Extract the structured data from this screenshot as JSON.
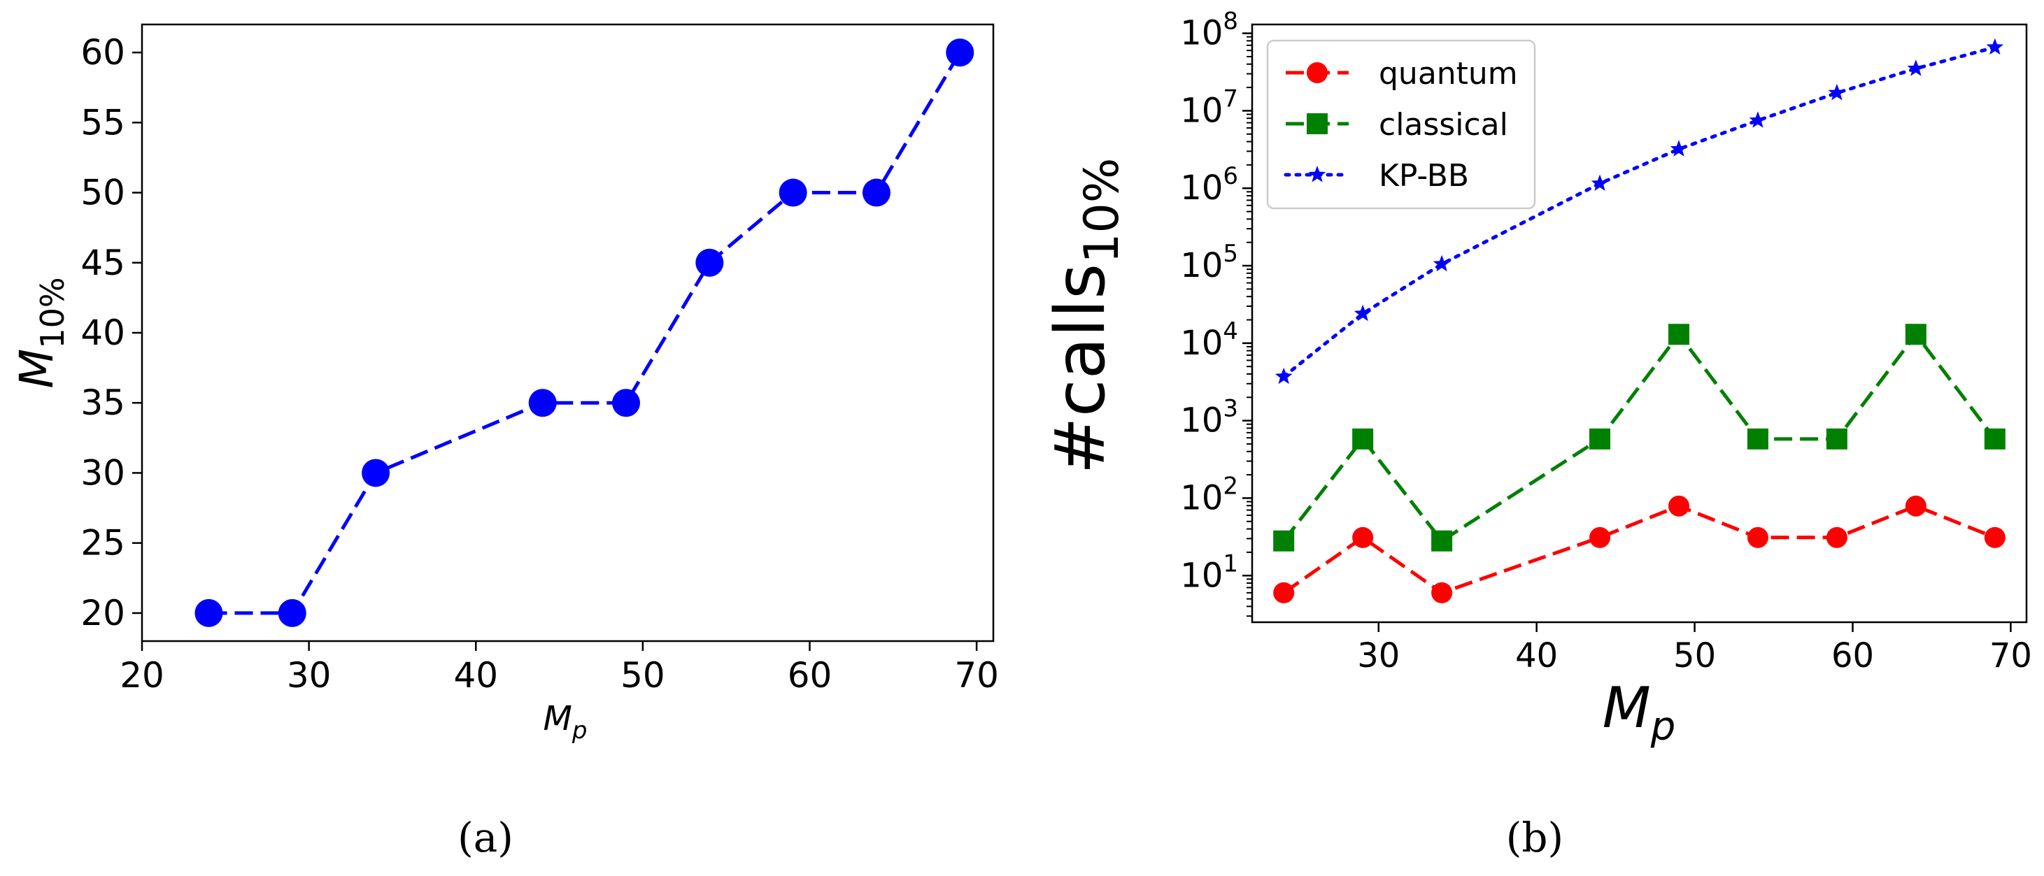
{
  "chart_data": [
    {
      "type": "line",
      "panel_label": "(a)",
      "xlabel": "M",
      "xlabel_sub": "p",
      "ylabel": "M",
      "ylabel_sub": "10%",
      "xlim": [
        20,
        71
      ],
      "ylim": [
        18,
        62
      ],
      "xticks": [
        20,
        30,
        40,
        50,
        60,
        70
      ],
      "yticks": [
        20,
        25,
        30,
        35,
        40,
        45,
        50,
        55,
        60
      ],
      "series": [
        {
          "name": "M10%",
          "color": "#0000ff",
          "style": "dashed",
          "marker": "circle",
          "x": [
            24,
            29,
            34,
            44,
            49,
            54,
            59,
            64,
            69
          ],
          "y": [
            20,
            20,
            30,
            35,
            35,
            45,
            50,
            50,
            60
          ]
        }
      ]
    },
    {
      "type": "line",
      "yscale": "log",
      "panel_label": "(b)",
      "xlabel": "M",
      "xlabel_sub": "p",
      "ylabel": "#calls",
      "ylabel_sub": "10%",
      "xlim": [
        22,
        71
      ],
      "ylim": [
        2.5,
        130000000
      ],
      "xticks": [
        30,
        40,
        50,
        60,
        70
      ],
      "ytick_exponents": [
        1,
        2,
        3,
        4,
        5,
        6,
        7,
        8
      ],
      "ytick_base": "10",
      "legend_position": "top-left",
      "series": [
        {
          "name": "quantum",
          "color": "#ff0000",
          "style": "dashed",
          "marker": "circle",
          "x": [
            24,
            29,
            34,
            44,
            49,
            54,
            59,
            64,
            69
          ],
          "y": [
            6,
            31,
            6,
            31,
            79,
            31,
            31,
            79,
            31
          ]
        },
        {
          "name": "classical",
          "color": "#008000",
          "style": "dashed",
          "marker": "square",
          "x": [
            24,
            29,
            34,
            44,
            49,
            54,
            59,
            64,
            69
          ],
          "y": [
            28,
            580,
            28,
            580,
            13000,
            580,
            580,
            13000,
            580
          ]
        },
        {
          "name": "KP-BB",
          "color": "#0000ff",
          "style": "dotted",
          "marker": "star",
          "x": [
            24,
            29,
            34,
            44,
            49,
            54,
            59,
            64,
            69
          ],
          "y": [
            3700,
            24000,
            105000,
            1150000,
            3200000,
            7500000,
            17000000,
            35000000,
            66000000
          ]
        }
      ]
    }
  ]
}
